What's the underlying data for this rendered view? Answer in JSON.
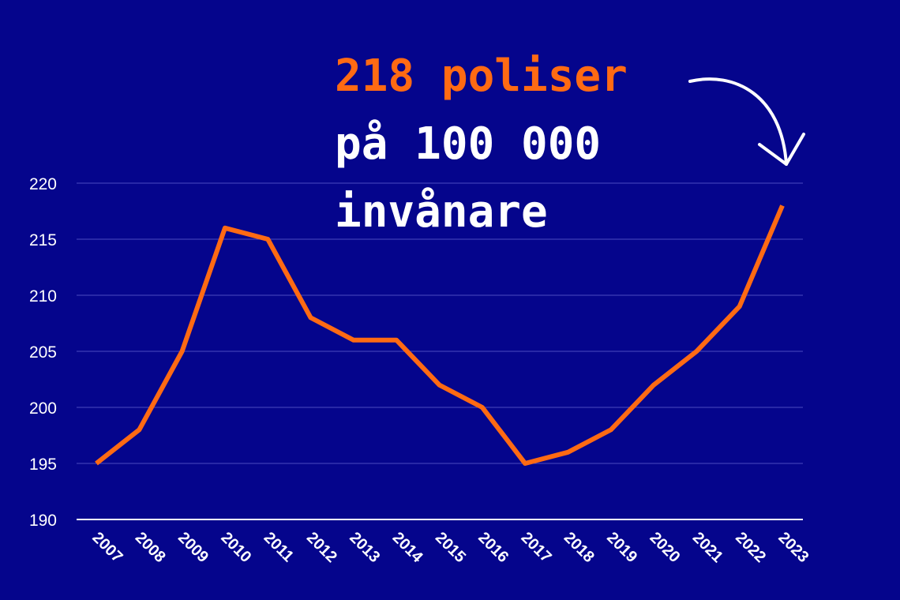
{
  "chart_data": {
    "type": "line",
    "annotation": [
      "218 poliser",
      "på 100 000",
      "invånare"
    ],
    "annotation_colors": [
      "#ff6a13",
      "#ffffff",
      "#ffffff"
    ],
    "categories": [
      "2007",
      "2008",
      "2009",
      "2010",
      "2011",
      "2012",
      "2013",
      "2014",
      "2015",
      "2016",
      "2017",
      "2018",
      "2019",
      "2020",
      "2021",
      "2022",
      "2023"
    ],
    "values": [
      195,
      198,
      205,
      216,
      215,
      208,
      206,
      206,
      202,
      200,
      195,
      196,
      198,
      202,
      205,
      209,
      218
    ],
    "color": "#ff6a13",
    "ylim": [
      190,
      220
    ],
    "yticks": [
      190,
      195,
      200,
      205,
      210,
      215,
      220
    ],
    "grid": true
  }
}
